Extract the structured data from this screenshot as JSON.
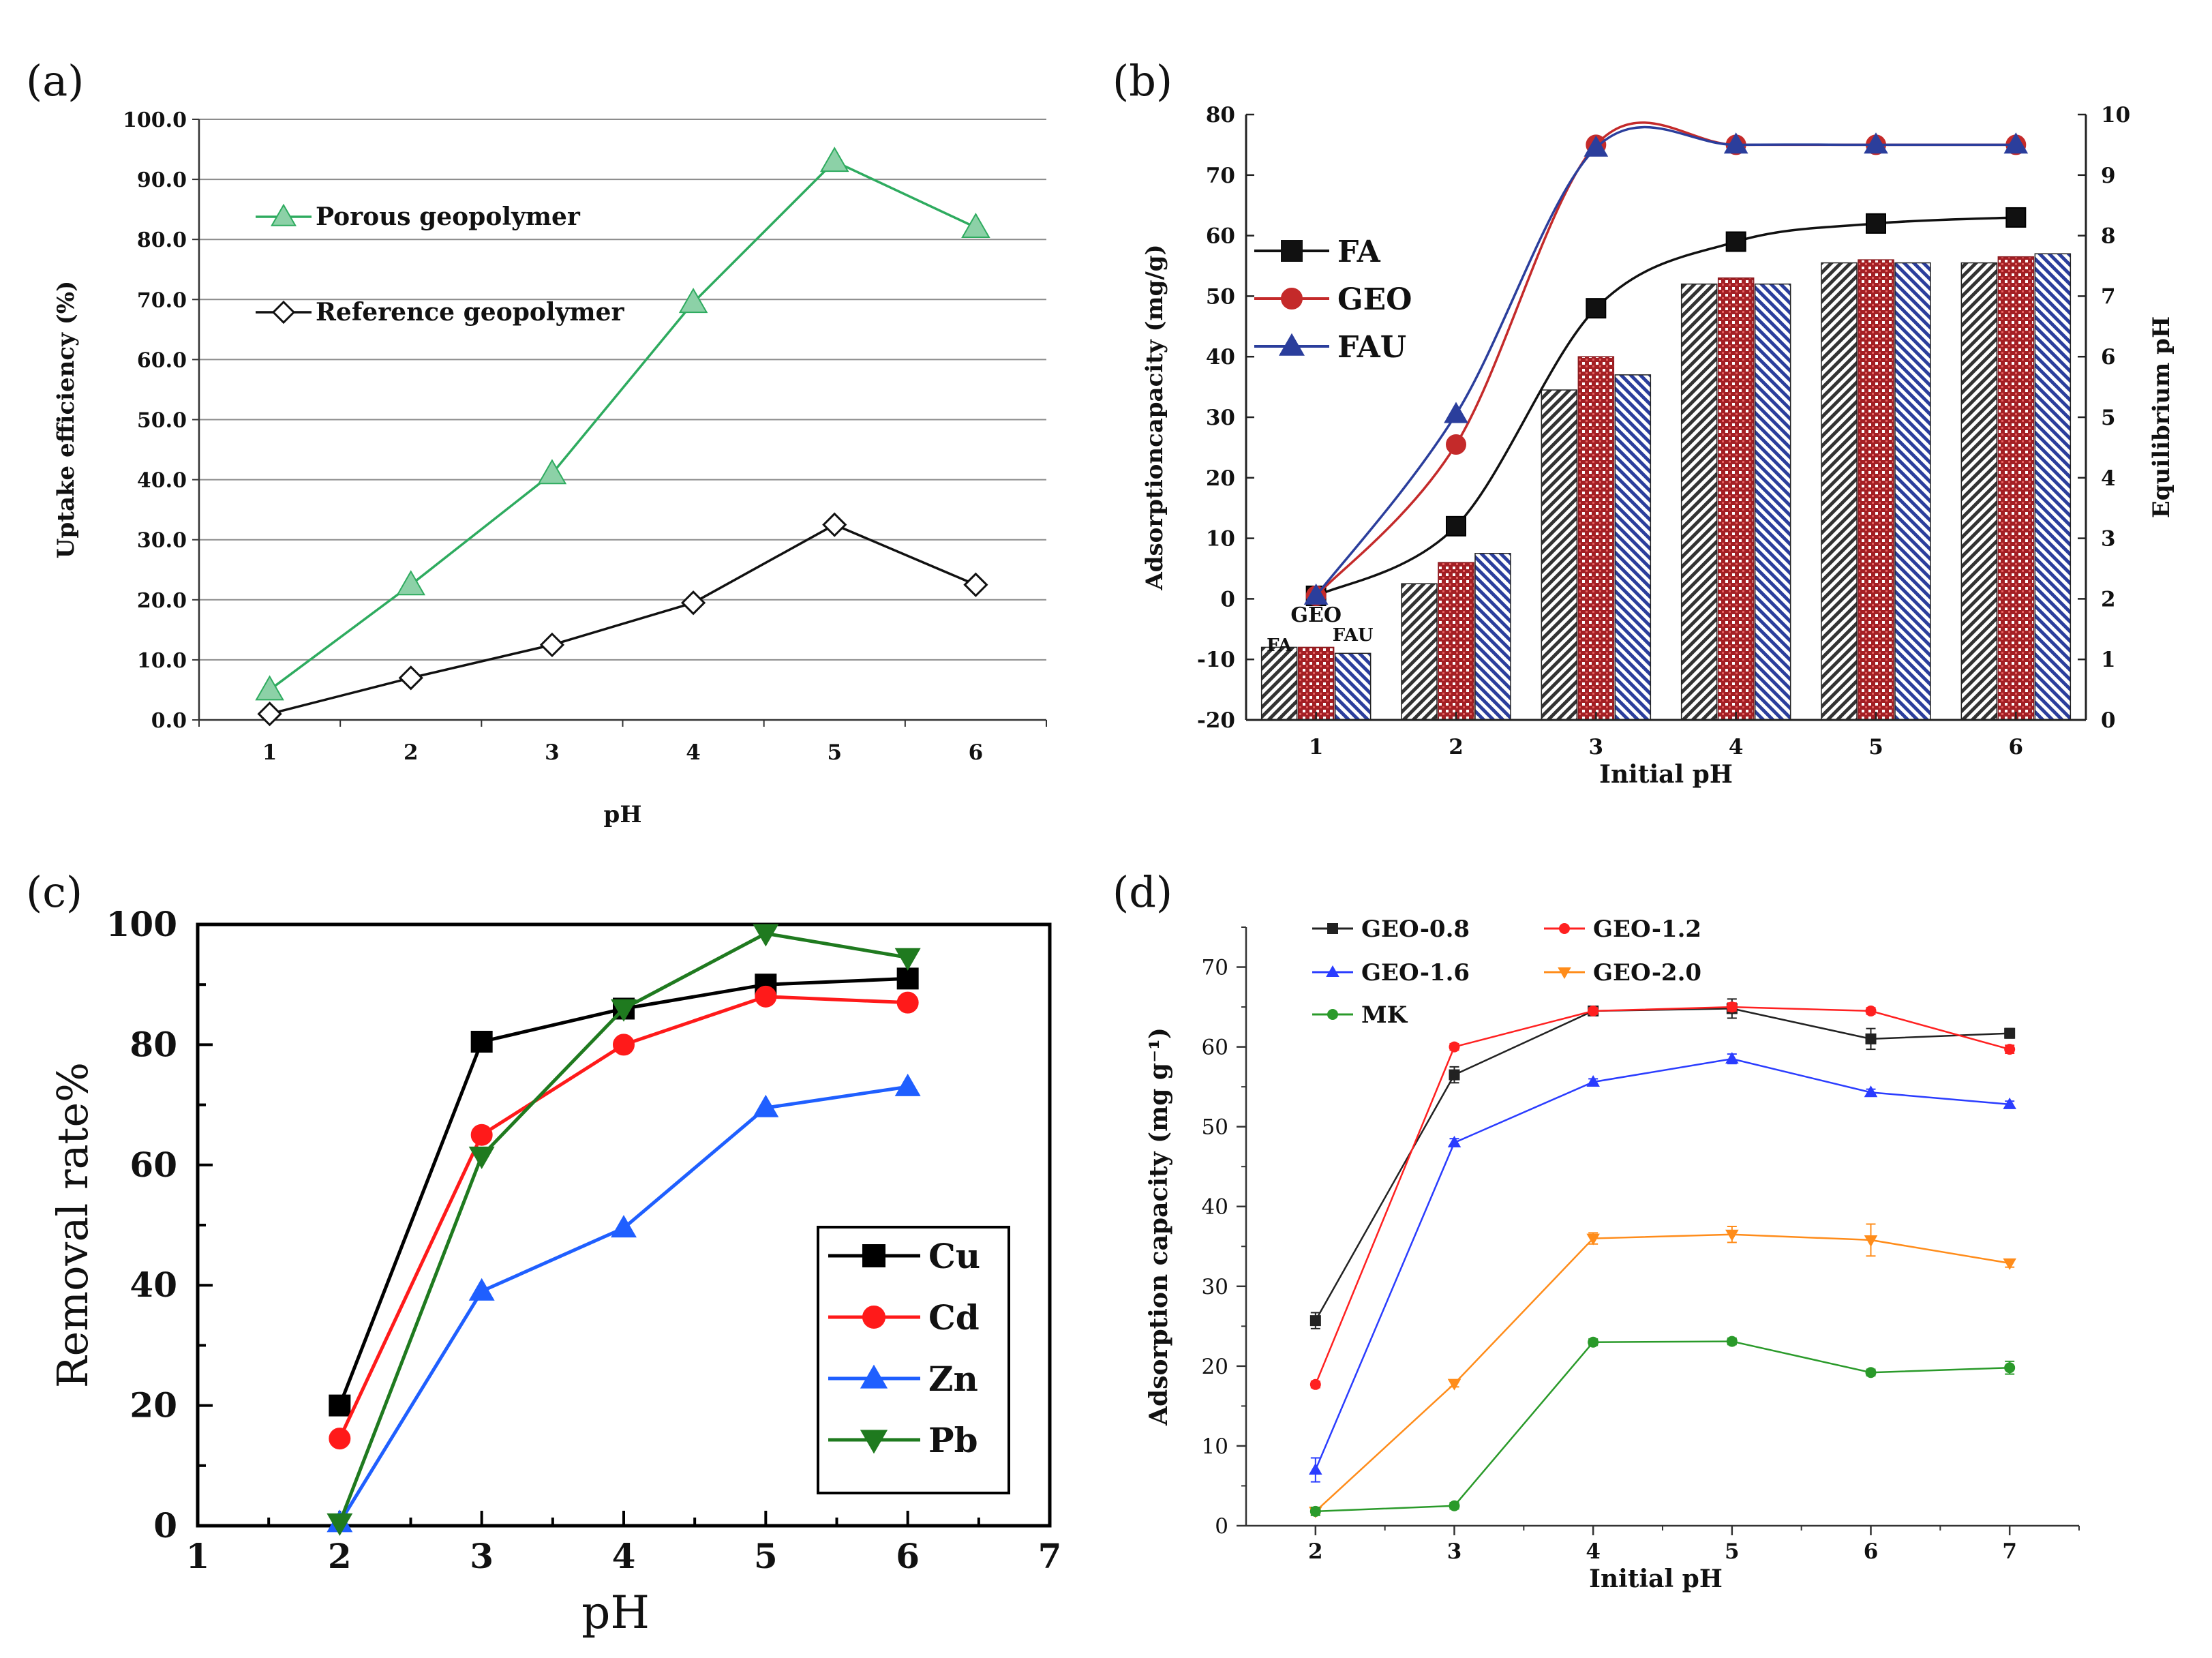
{
  "chart_data": [
    {
      "panel": "(a)",
      "type": "line",
      "xlabel": "pH",
      "ylabel": "Uptake efficiency (%)",
      "x": [
        1,
        2,
        3,
        4,
        5,
        6
      ],
      "xticks": [
        "1",
        "2",
        "3",
        "4",
        "5",
        "6"
      ],
      "ylim": [
        0,
        100
      ],
      "yticks": [
        "0.0",
        "10.0",
        "20.0",
        "30.0",
        "40.0",
        "50.0",
        "60.0",
        "70.0",
        "80.0",
        "90.0",
        "100.0"
      ],
      "grid": true,
      "series": [
        {
          "name": "Porous geopolymer",
          "values": [
            5.0,
            22.5,
            41.0,
            69.5,
            93.0,
            82.0
          ],
          "color": "#2eab5f",
          "marker": "triangle"
        },
        {
          "name": "Reference geopolymer",
          "values": [
            1.0,
            7.0,
            12.5,
            19.5,
            32.5,
            22.5
          ],
          "color": "#111111",
          "marker": "diamond"
        }
      ]
    },
    {
      "panel": "(b)",
      "type": "bar+line",
      "xlabel": "Initial pH",
      "ylabel": "Adsorptioncapacity (mg/g)",
      "y2label": "Equilibrium pH",
      "x": [
        1,
        2,
        3,
        4,
        5,
        6
      ],
      "xticks": [
        "1",
        "2",
        "3",
        "4",
        "5",
        "6"
      ],
      "ylim": [
        -20,
        80
      ],
      "yticks": [
        "-20",
        "-10",
        "0",
        "10",
        "20",
        "30",
        "40",
        "50",
        "60",
        "70",
        "80"
      ],
      "y2lim": [
        0,
        10
      ],
      "y2ticks": [
        "0",
        "1",
        "2",
        "3",
        "4",
        "5",
        "6",
        "7",
        "8",
        "9",
        "10"
      ],
      "series": [
        {
          "name": "FA",
          "values": [
            0.5,
            12.0,
            48.0,
            59.0,
            62.0,
            63.0
          ],
          "color": "#111111",
          "marker": "square"
        },
        {
          "name": "GEO",
          "values": [
            0.5,
            25.5,
            75.0,
            75.0,
            75.0,
            75.0
          ],
          "color": "#c42a2a",
          "marker": "circle"
        },
        {
          "name": "FAU",
          "values": [
            0.5,
            30.5,
            74.5,
            75.0,
            75.0,
            75.0
          ],
          "color": "#2b3e9c",
          "marker": "triangle"
        }
      ],
      "bars_equilibrium_pH": [
        {
          "name": "FA",
          "values": [
            1.2,
            2.25,
            5.45,
            7.2,
            7.55,
            7.55
          ],
          "color": "#333333",
          "pattern": "diagonal"
        },
        {
          "name": "GEO",
          "values": [
            1.2,
            2.6,
            6.0,
            7.3,
            7.6,
            7.65
          ],
          "color": "#a31f24",
          "pattern": "grid"
        },
        {
          "name": "FAU",
          "values": [
            1.1,
            2.75,
            5.7,
            7.2,
            7.55,
            7.7
          ],
          "color": "#2b3e9c",
          "pattern": "diagonal"
        }
      ],
      "bar_labels": [
        "FA",
        "GEO",
        "FAU"
      ]
    },
    {
      "panel": "(c)",
      "type": "line",
      "xlabel": "pH",
      "ylabel": "Removal rate%",
      "xlim": [
        1,
        7
      ],
      "xticks": [
        "1",
        "2",
        "3",
        "4",
        "5",
        "6",
        "7"
      ],
      "ylim": [
        0,
        100
      ],
      "yticks": [
        "0",
        "20",
        "40",
        "60",
        "80",
        "100"
      ],
      "x": [
        2,
        3,
        4,
        5,
        6
      ],
      "series": [
        {
          "name": "Cu",
          "values": [
            20.0,
            80.5,
            86.0,
            90.0,
            91.0
          ],
          "color": "#000000",
          "marker": "square"
        },
        {
          "name": "Cd",
          "values": [
            14.5,
            65.0,
            80.0,
            88.0,
            87.0
          ],
          "color": "#ff1a1a",
          "marker": "circle"
        },
        {
          "name": "Zn",
          "values": [
            0.5,
            39.0,
            49.5,
            69.5,
            73.0
          ],
          "color": "#1f5fff",
          "marker": "triangle"
        },
        {
          "name": "Pb",
          "values": [
            0.5,
            61.5,
            86.0,
            98.5,
            94.5
          ],
          "color": "#1f7a1f",
          "marker": "triangle-down"
        }
      ]
    },
    {
      "panel": "(d)",
      "type": "line",
      "xlabel": "Initial pH",
      "ylabel": "Adsorption capacity  (mg g⁻¹)",
      "xlim": [
        1.5,
        7.5
      ],
      "xticks": [
        "2",
        "3",
        "4",
        "5",
        "6",
        "7"
      ],
      "ylim": [
        0,
        75
      ],
      "yticks": [
        "0",
        "10",
        "20",
        "30",
        "40",
        "50",
        "60",
        "70"
      ],
      "x": [
        2,
        3,
        4,
        5,
        6,
        7
      ],
      "series": [
        {
          "name": "GEO-0.8",
          "values": [
            25.7,
            56.5,
            64.5,
            64.8,
            61.0,
            61.7
          ],
          "errors": [
            1.0,
            1.0,
            0.5,
            1.2,
            1.3,
            0.6
          ],
          "color": "#222222",
          "marker": "square"
        },
        {
          "name": "GEO-1.2",
          "values": [
            17.7,
            60.0,
            64.5,
            65.0,
            64.5,
            59.7
          ],
          "errors": [
            0.4,
            0.4,
            0.4,
            0.5,
            0.4,
            0.5
          ],
          "color": "#ff2020",
          "marker": "circle"
        },
        {
          "name": "GEO-1.6",
          "values": [
            7.0,
            48.0,
            55.6,
            58.5,
            54.3,
            52.8
          ],
          "errors": [
            1.5,
            0.5,
            0.4,
            0.6,
            0.4,
            0.4
          ],
          "color": "#2a3cff",
          "marker": "triangle"
        },
        {
          "name": "GEO-2.0",
          "values": [
            1.8,
            17.8,
            36.0,
            36.5,
            35.8,
            32.9
          ],
          "errors": [
            0.4,
            0.4,
            0.7,
            1.0,
            2.0,
            0.5
          ],
          "color": "#ff8c1a",
          "marker": "triangle-down"
        },
        {
          "name": "MK",
          "values": [
            1.8,
            2.5,
            23.0,
            23.1,
            19.2,
            19.8
          ],
          "errors": [
            0.5,
            0.4,
            0.4,
            0.4,
            0.4,
            0.8
          ],
          "color": "#2a9a2a",
          "marker": "circle"
        }
      ]
    }
  ]
}
